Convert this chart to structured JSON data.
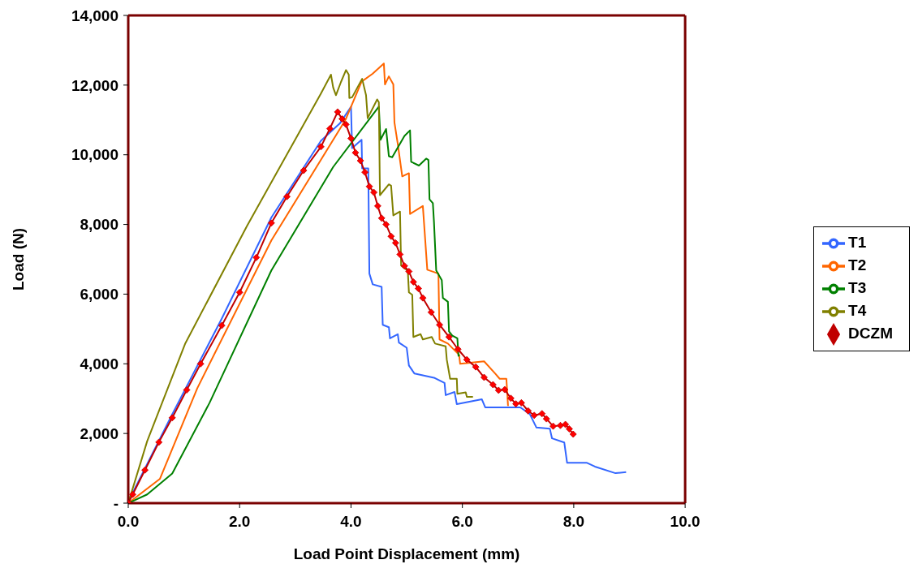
{
  "chart_data": {
    "type": "line",
    "xlabel": "Load Point Displacement (mm)",
    "ylabel": "Load (N)",
    "xlim": [
      0,
      10
    ],
    "xticks": [
      {
        "value": 0,
        "label": "0.0"
      },
      {
        "value": 2,
        "label": "2.0"
      },
      {
        "value": 4,
        "label": "4.0"
      },
      {
        "value": 6,
        "label": "6.0"
      },
      {
        "value": 8,
        "label": "8.0"
      },
      {
        "value": 10,
        "label": "10.0"
      }
    ],
    "ylim": [
      0,
      14000
    ],
    "yticks": [
      {
        "value": 0,
        "label": "-"
      },
      {
        "value": 2000,
        "label": "2,000"
      },
      {
        "value": 4000,
        "label": "4,000"
      },
      {
        "value": 6000,
        "label": "6,000"
      },
      {
        "value": 8000,
        "label": "8,000"
      },
      {
        "value": 10000,
        "label": "10,000"
      },
      {
        "value": 12000,
        "label": "12,000"
      },
      {
        "value": 14000,
        "label": "14,000"
      }
    ],
    "grid": false,
    "legend": "right",
    "marker": "none",
    "line_style": "solid",
    "series": [
      {
        "name": "T1",
        "color": "#3366ff",
        "x": [
          0,
          0.08,
          0.79,
          1.68,
          2.57,
          3.46,
          3.8,
          4.0,
          4.02,
          4.19,
          4.2,
          4.31,
          4.33,
          4.39,
          4.55,
          4.57,
          4.68,
          4.7,
          4.84,
          4.86,
          5.0,
          5.04,
          5.14,
          5.49,
          5.68,
          5.7,
          5.86,
          5.9,
          6.35,
          6.41,
          6.79,
          7.04,
          7.21,
          7.33,
          7.57,
          7.61,
          7.83,
          7.88,
          8.23,
          8.38,
          8.75,
          8.94
        ],
        "values": [
          0,
          300,
          2550,
          5300,
          8200,
          10400,
          10900,
          11380,
          10190,
          10430,
          9610,
          9610,
          6590,
          6280,
          6210,
          5120,
          5050,
          4730,
          4850,
          4610,
          4460,
          3950,
          3720,
          3600,
          3450,
          3100,
          3190,
          2840,
          2980,
          2750,
          2750,
          2750,
          2560,
          2170,
          2140,
          1860,
          1740,
          1160,
          1160,
          1050,
          860,
          890
        ]
      },
      {
        "name": "T2",
        "color": "#ff6600",
        "x": [
          0,
          0.57,
          1.24,
          2.57,
          3.9,
          4.19,
          4.39,
          4.59,
          4.61,
          4.68,
          4.76,
          4.78,
          4.84,
          4.92,
          5.04,
          5.06,
          5.29,
          5.37,
          5.57,
          5.59,
          5.74,
          5.94,
          5.96,
          6.39,
          6.59,
          6.67,
          6.79,
          6.82
        ],
        "values": [
          0,
          700,
          3300,
          7540,
          11000,
          12100,
          12330,
          12620,
          12020,
          12250,
          12020,
          10930,
          10310,
          9380,
          9470,
          8300,
          8530,
          6700,
          6590,
          4700,
          4580,
          4260,
          4000,
          4070,
          3720,
          3570,
          3570,
          2790
        ]
      },
      {
        "name": "T3",
        "color": "#008000",
        "x": [
          0,
          0.34,
          0.79,
          1.46,
          2.57,
          3.68,
          4.5,
          4.53,
          4.63,
          4.68,
          4.74,
          4.96,
          5.06,
          5.08,
          5.22,
          5.35,
          5.39,
          5.41,
          5.47,
          5.49,
          5.53,
          5.63,
          5.65,
          5.74,
          5.76,
          5.82,
          5.91,
          5.93,
          5.95
        ],
        "values": [
          0,
          250,
          850,
          2880,
          6680,
          9650,
          11380,
          10430,
          10740,
          9960,
          9930,
          10540,
          10700,
          9800,
          9690,
          9890,
          9850,
          8720,
          8610,
          8070,
          6680,
          6400,
          5890,
          5780,
          4930,
          4810,
          4730,
          4230,
          4250
        ]
      },
      {
        "name": "T4",
        "color": "#808000",
        "x": [
          0,
          0.34,
          1.02,
          2.13,
          3.46,
          3.64,
          3.68,
          3.73,
          3.82,
          3.91,
          3.96,
          3.97,
          4.02,
          4.2,
          4.27,
          4.3,
          4.47,
          4.5,
          4.52,
          4.68,
          4.72,
          4.76,
          4.88,
          4.9,
          5.02,
          5.04,
          5.1,
          5.12,
          5.25,
          5.29,
          5.45,
          5.51,
          5.7,
          5.72,
          5.78,
          5.9,
          5.91,
          6.06,
          6.08,
          6.19
        ],
        "values": [
          0,
          1780,
          4570,
          7950,
          11760,
          12300,
          11930,
          11710,
          12090,
          12430,
          12300,
          11630,
          11650,
          12180,
          11710,
          11050,
          11590,
          11510,
          8840,
          9150,
          9110,
          8260,
          8370,
          6820,
          6670,
          6050,
          5980,
          4770,
          4850,
          4700,
          4770,
          4580,
          4500,
          4120,
          3570,
          3570,
          3140,
          3180,
          3050,
          3050
        ]
      },
      {
        "name": "DCZM",
        "color": "#c00000",
        "marker": "diamond",
        "x": [
          0,
          0.08,
          0.3,
          0.55,
          0.79,
          1.05,
          1.3,
          1.68,
          2.0,
          2.3,
          2.57,
          2.85,
          3.15,
          3.46,
          3.62,
          3.76,
          3.84,
          3.91,
          4.0,
          4.08,
          4.17,
          4.25,
          4.33,
          4.41,
          4.48,
          4.55,
          4.63,
          4.72,
          4.8,
          4.88,
          4.96,
          5.04,
          5.12,
          5.21,
          5.29,
          5.44,
          5.59,
          5.76,
          5.92,
          6.08,
          6.24,
          6.39,
          6.55,
          6.65,
          6.76,
          6.87,
          6.96,
          7.06,
          7.18,
          7.29,
          7.43,
          7.51,
          7.63,
          7.76,
          7.85,
          7.92,
          7.99
        ],
        "values": [
          0,
          250,
          950,
          1750,
          2450,
          3250,
          4000,
          5100,
          6050,
          7050,
          8040,
          8800,
          9550,
          10230,
          10750,
          11230,
          11030,
          10870,
          10470,
          10060,
          9830,
          9500,
          9090,
          8920,
          8530,
          8180,
          8000,
          7660,
          7470,
          7140,
          6810,
          6650,
          6350,
          6160,
          5890,
          5480,
          5120,
          4770,
          4420,
          4120,
          3910,
          3610,
          3400,
          3240,
          3260,
          3010,
          2850,
          2880,
          2650,
          2520,
          2570,
          2420,
          2210,
          2230,
          2260,
          2130,
          1980
        ]
      }
    ]
  }
}
